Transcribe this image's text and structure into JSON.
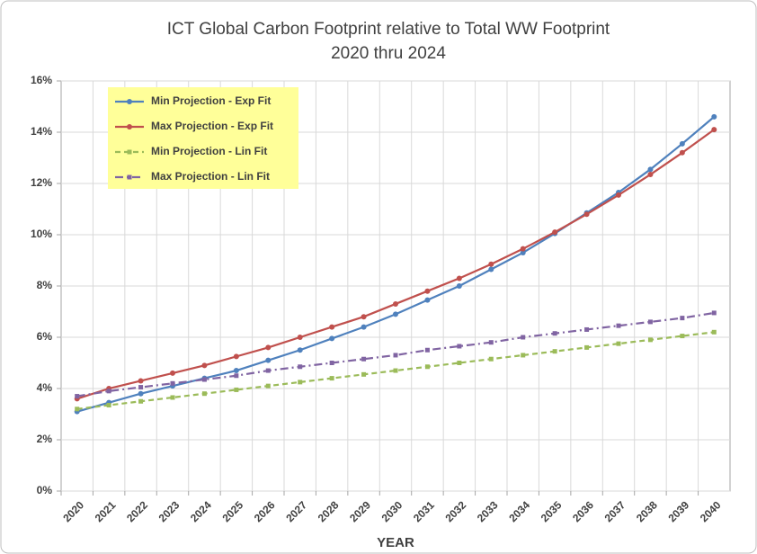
{
  "chart_data": {
    "type": "line",
    "title": "ICT Global Carbon Footprint  relative to Total WW Footprint",
    "subtitle": "2020 thru 2024",
    "x_label": "YEAR",
    "categories": [
      "2020",
      "2021",
      "2022",
      "2023",
      "2024",
      "2025",
      "2026",
      "2027",
      "2028",
      "2029",
      "2030",
      "2031",
      "2032",
      "2033",
      "2034",
      "2035",
      "2036",
      "2037",
      "2038",
      "2039",
      "2040"
    ],
    "series": [
      {
        "name": "Min Projection - Exp Fit",
        "color": "#4f81bd",
        "dash": "solid",
        "marker": "circle",
        "values": [
          3.1,
          3.45,
          3.8,
          4.1,
          4.4,
          4.7,
          5.1,
          5.5,
          5.95,
          6.4,
          6.9,
          7.45,
          8.0,
          8.65,
          9.3,
          10.05,
          10.85,
          11.65,
          12.55,
          13.55,
          14.6
        ]
      },
      {
        "name": "Max Projection - Exp Fit",
        "color": "#c0504d",
        "dash": "solid",
        "marker": "circle",
        "values": [
          3.6,
          4.0,
          4.3,
          4.6,
          4.9,
          5.25,
          5.6,
          6.0,
          6.4,
          6.8,
          7.3,
          7.8,
          8.3,
          8.85,
          9.45,
          10.1,
          10.8,
          11.55,
          12.35,
          13.2,
          14.1
        ]
      },
      {
        "name": "Min Projection - Lin Fit",
        "color": "#9bbb59",
        "dash": "dash",
        "marker": "square",
        "values": [
          3.2,
          3.35,
          3.5,
          3.65,
          3.8,
          3.95,
          4.1,
          4.25,
          4.4,
          4.55,
          4.7,
          4.85,
          5.0,
          5.15,
          5.3,
          5.45,
          5.6,
          5.75,
          5.9,
          6.05,
          6.2
        ]
      },
      {
        "name": "Max Projection - Lin Fit",
        "color": "#8064a2",
        "dash": "dashdot",
        "marker": "square",
        "values": [
          3.7,
          3.9,
          4.05,
          4.2,
          4.35,
          4.5,
          4.7,
          4.85,
          5.0,
          5.15,
          5.3,
          5.5,
          5.65,
          5.8,
          6.0,
          6.15,
          6.3,
          6.45,
          6.6,
          6.75,
          6.95
        ]
      }
    ],
    "ylim": [
      0,
      16
    ],
    "yticks": [
      {
        "value": 0,
        "label": "0%"
      },
      {
        "value": 2,
        "label": "2%"
      },
      {
        "value": 4,
        "label": "4%"
      },
      {
        "value": 6,
        "label": "6%"
      },
      {
        "value": 8,
        "label": "8%"
      },
      {
        "value": 10,
        "label": "10%"
      },
      {
        "value": 12,
        "label": "12%"
      },
      {
        "value": 14,
        "label": "14%"
      },
      {
        "value": 16,
        "label": "16%"
      }
    ],
    "grid": true,
    "legend_position": "upper left"
  }
}
